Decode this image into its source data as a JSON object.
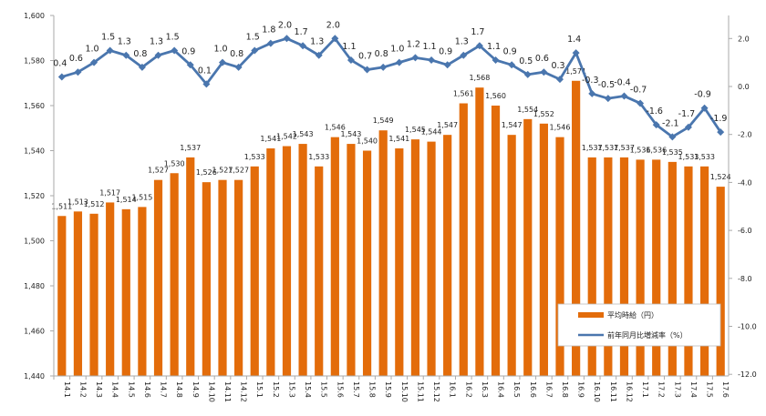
{
  "chart_data": {
    "type": "bar+line",
    "categories": [
      "14.1",
      "14.2",
      "14.3",
      "14.4",
      "14.5",
      "14.6",
      "14.7",
      "14.8",
      "14.9",
      "14.10",
      "14.11",
      "14.12",
      "15.1",
      "15.2",
      "15.3",
      "15.4",
      "15.5",
      "15.6",
      "15.7",
      "15.8",
      "15.9",
      "15.10",
      "15.11",
      "15.12",
      "16.1",
      "16.2",
      "16.3",
      "16.4",
      "16.5",
      "16.6",
      "16.7",
      "16.8",
      "16.9",
      "16.10",
      "16.11",
      "16.12",
      "17.1",
      "17.2",
      "17.3",
      "17.4",
      "17.5",
      "17.6"
    ],
    "series": [
      {
        "name": "平均時給（円）",
        "type": "bar",
        "axis": "left",
        "color": "#E36C0A",
        "values": [
          1511,
          1513,
          1512,
          1517,
          1514,
          1515,
          1527,
          1530,
          1537,
          1526,
          1527,
          1527,
          1533,
          1541,
          1542,
          1543,
          1533,
          1546,
          1543,
          1540,
          1549,
          1541,
          1545,
          1544,
          1547,
          1561,
          1568,
          1560,
          1547,
          1554,
          1552,
          1546,
          1571,
          1537,
          1537,
          1537,
          1536,
          1536,
          1535,
          1533,
          1533,
          1524
        ]
      },
      {
        "name": "前年同月比増減率（%）",
        "type": "line",
        "axis": "right",
        "color": "#4A76AE",
        "values": [
          0.4,
          0.6,
          1.0,
          1.5,
          1.3,
          0.8,
          1.3,
          1.5,
          0.9,
          0.1,
          1.0,
          0.8,
          1.5,
          1.8,
          2.0,
          1.7,
          1.3,
          2.0,
          1.1,
          0.7,
          0.8,
          1.0,
          1.2,
          1.1,
          0.9,
          1.3,
          1.7,
          1.1,
          0.9,
          0.5,
          0.6,
          0.3,
          1.4,
          -0.3,
          -0.5,
          -0.4,
          -0.7,
          -1.6,
          -2.1,
          -1.7,
          -0.9,
          -1.9
        ]
      }
    ],
    "left_axis": {
      "ylim": [
        1440,
        1600
      ],
      "step": 20,
      "ticks": [
        "1,440",
        "1,460",
        "1,480",
        "1,500",
        "1,520",
        "1,540",
        "1,560",
        "1,580",
        "1,600"
      ]
    },
    "right_axis": {
      "ylim": [
        -12.0,
        2.0
      ],
      "step": 2,
      "ticks": [
        "-12.0",
        "-10.0",
        "-8.0",
        "-6.0",
        "-4.0",
        "-2.0",
        "0.0",
        "2.0"
      ]
    },
    "grid": false,
    "legend": "bottom-right",
    "title": "",
    "xlabel": "",
    "ylabel": ""
  }
}
